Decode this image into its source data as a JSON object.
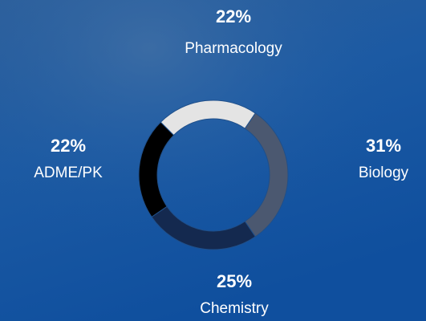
{
  "chart_data": {
    "type": "pie",
    "categories": [
      "Pharmacology",
      "Biology",
      "Chemistry",
      "ADME/PK"
    ],
    "values": [
      22,
      31,
      25,
      22
    ],
    "value_labels": [
      "22%",
      "31%",
      "25%",
      "22%"
    ],
    "colors": [
      "#e4e4e4",
      "#4b5870",
      "#14294f",
      "#000000"
    ]
  }
}
